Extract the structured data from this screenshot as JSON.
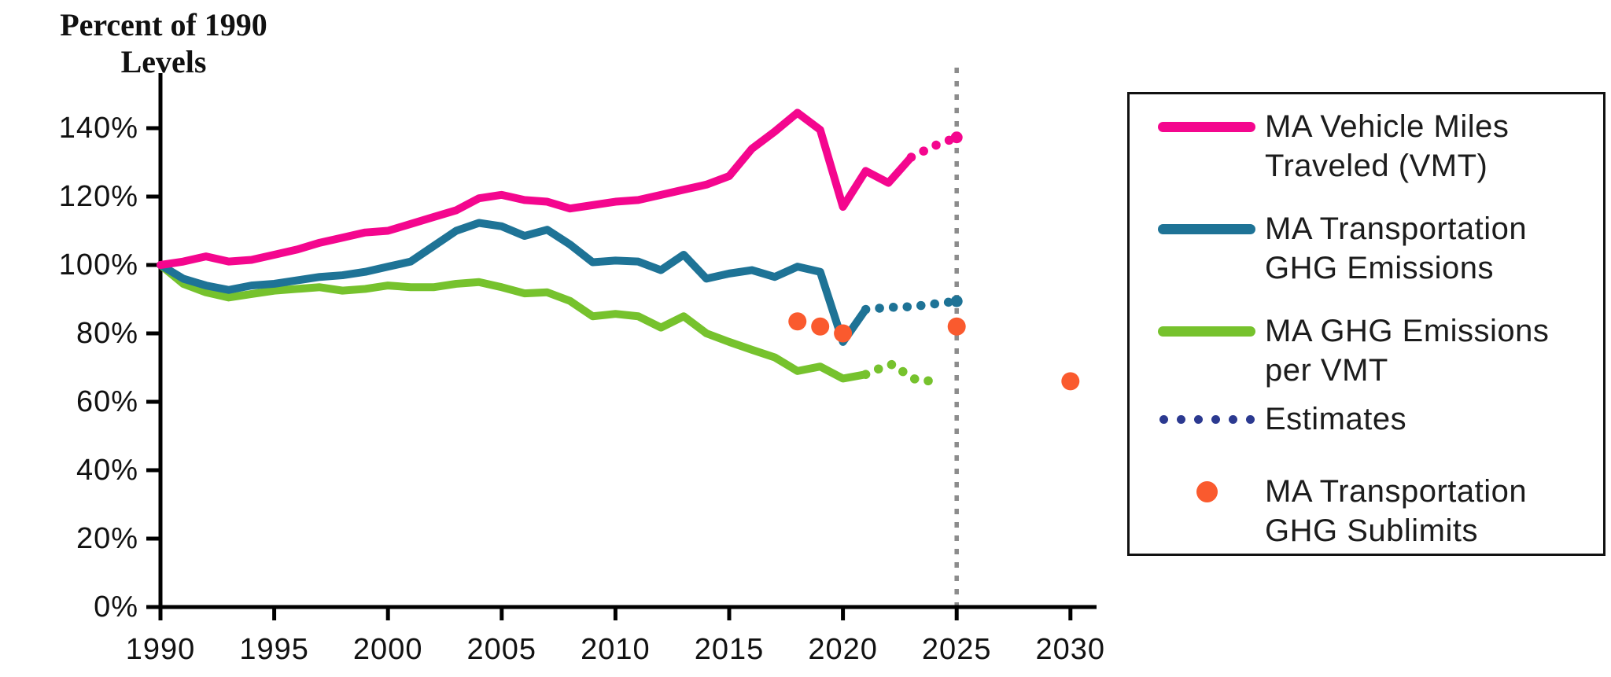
{
  "title": {
    "line1": "Percent of 1990",
    "line2": "Levels"
  },
  "colors": {
    "pink": "#F4068E",
    "blue": "#1E7396",
    "green": "#76C22D",
    "orange": "#FA5A2E",
    "navy": "#2B3990",
    "divider_gray": "#8C8C8C",
    "axis": "#000000",
    "text": "#1C1C1C"
  },
  "legend": {
    "items": [
      {
        "swatch": "line",
        "color_key": "pink",
        "lines": [
          "MA Vehicle Miles",
          "Traveled (VMT)"
        ]
      },
      {
        "swatch": "line",
        "color_key": "blue",
        "lines": [
          "MA Transportation",
          "GHG Emissions"
        ]
      },
      {
        "swatch": "line",
        "color_key": "green",
        "lines": [
          "MA GHG Emissions",
          "per VMT"
        ]
      },
      {
        "swatch": "dots",
        "color_key": "navy",
        "lines": [
          "Estimates",
          ""
        ]
      },
      {
        "swatch": "dot",
        "color_key": "orange",
        "lines": [
          "MA Transportation",
          "GHG Sublimits"
        ]
      }
    ]
  },
  "chart_data": {
    "type": "line",
    "title": "Percent of 1990 Levels",
    "xlabel": "",
    "ylabel": "Percent of 1990 Levels",
    "ylim": [
      0,
      150
    ],
    "xlim": [
      1990,
      2032
    ],
    "grid": false,
    "legend_position": "right",
    "forecast_divider_year": 2025,
    "yticks": [
      {
        "value": 0,
        "label": "0%"
      },
      {
        "value": 20,
        "label": "20%"
      },
      {
        "value": 40,
        "label": "40%"
      },
      {
        "value": 60,
        "label": "60%"
      },
      {
        "value": 80,
        "label": "80%"
      },
      {
        "value": 100,
        "label": "100%"
      },
      {
        "value": 120,
        "label": "120%"
      },
      {
        "value": 140,
        "label": "140%"
      }
    ],
    "xticks": [
      {
        "value": 1990,
        "label": "1990"
      },
      {
        "value": 1995,
        "label": "1995"
      },
      {
        "value": 2000,
        "label": "2000"
      },
      {
        "value": 2005,
        "label": "2005"
      },
      {
        "value": 2010,
        "label": "2010"
      },
      {
        "value": 2015,
        "label": "2015"
      },
      {
        "value": 2020,
        "label": "2020"
      },
      {
        "value": 2025,
        "label": "2025"
      },
      {
        "value": 2030,
        "label": "2030"
      }
    ],
    "series": [
      {
        "key": "vmt",
        "name": "MA Vehicle Miles Traveled (VMT)",
        "color_key": "pink",
        "style": "solid",
        "points": [
          [
            1990,
            100
          ],
          [
            1991,
            101
          ],
          [
            1992,
            102.5
          ],
          [
            1993,
            101
          ],
          [
            1994,
            101.5
          ],
          [
            1995,
            103
          ],
          [
            1996,
            104.5
          ],
          [
            1997,
            106.5
          ],
          [
            1998,
            108
          ],
          [
            1999,
            109.5
          ],
          [
            2000,
            110
          ],
          [
            2001,
            112
          ],
          [
            2002,
            114
          ],
          [
            2003,
            116
          ],
          [
            2004,
            119.5
          ],
          [
            2005,
            120.5
          ],
          [
            2006,
            119
          ],
          [
            2007,
            118.5
          ],
          [
            2008,
            116.5
          ],
          [
            2009,
            117.5
          ],
          [
            2010,
            118.5
          ],
          [
            2011,
            119
          ],
          [
            2012,
            120.5
          ],
          [
            2013,
            122
          ],
          [
            2014,
            123.5
          ],
          [
            2015,
            126
          ],
          [
            2016,
            134
          ],
          [
            2017,
            139
          ],
          [
            2018,
            144.5
          ],
          [
            2019,
            139.5
          ],
          [
            2020,
            117
          ],
          [
            2021,
            127.5
          ],
          [
            2022,
            124
          ],
          [
            2023,
            131.5
          ]
        ]
      },
      {
        "key": "vmt_estimate",
        "name": "Estimates (VMT)",
        "color_key": "pink",
        "style": "dotted",
        "end_dot": true,
        "points": [
          [
            2023,
            131.5
          ],
          [
            2024,
            134.8
          ],
          [
            2025,
            137.3
          ]
        ]
      },
      {
        "key": "ghg",
        "name": "MA Transportation GHG Emissions",
        "color_key": "blue",
        "style": "solid",
        "points": [
          [
            1990,
            100
          ],
          [
            1991,
            96
          ],
          [
            1992,
            94
          ],
          [
            1993,
            92.7
          ],
          [
            1994,
            94
          ],
          [
            1995,
            94.5
          ],
          [
            1996,
            95.5
          ],
          [
            1997,
            96.5
          ],
          [
            1998,
            97
          ],
          [
            1999,
            98
          ],
          [
            2000,
            99.5
          ],
          [
            2001,
            101
          ],
          [
            2002,
            105.5
          ],
          [
            2003,
            110
          ],
          [
            2004,
            112.3
          ],
          [
            2005,
            111.3
          ],
          [
            2006,
            108.5
          ],
          [
            2007,
            110.3
          ],
          [
            2008,
            106
          ],
          [
            2009,
            100.8
          ],
          [
            2010,
            101.3
          ],
          [
            2011,
            101
          ],
          [
            2012,
            98.5
          ],
          [
            2013,
            103
          ],
          [
            2014,
            96
          ],
          [
            2015,
            97.5
          ],
          [
            2016,
            98.5
          ],
          [
            2017,
            96.5
          ],
          [
            2018,
            99.5
          ],
          [
            2019,
            98
          ],
          [
            2020,
            77.5
          ],
          [
            2021,
            87
          ]
        ]
      },
      {
        "key": "ghg_estimate",
        "name": "Estimates (GHG)",
        "color_key": "blue",
        "style": "dotted",
        "end_dot": true,
        "points": [
          [
            2021,
            87
          ],
          [
            2022,
            87.6
          ],
          [
            2023,
            87.8
          ],
          [
            2024,
            88.6
          ],
          [
            2025,
            89.4
          ]
        ]
      },
      {
        "key": "per_vmt",
        "name": "MA GHG Emissions per VMT",
        "color_key": "green",
        "style": "solid",
        "points": [
          [
            1990,
            100
          ],
          [
            1991,
            94.5
          ],
          [
            1992,
            92
          ],
          [
            1993,
            90.5
          ],
          [
            1994,
            91.5
          ],
          [
            1995,
            92.5
          ],
          [
            1996,
            93
          ],
          [
            1997,
            93.5
          ],
          [
            1998,
            92.5
          ],
          [
            1999,
            93
          ],
          [
            2000,
            94
          ],
          [
            2001,
            93.5
          ],
          [
            2002,
            93.5
          ],
          [
            2003,
            94.5
          ],
          [
            2004,
            95
          ],
          [
            2005,
            93.5
          ],
          [
            2006,
            91.7
          ],
          [
            2007,
            92
          ],
          [
            2008,
            89.5
          ],
          [
            2009,
            85
          ],
          [
            2010,
            85.7
          ],
          [
            2011,
            85
          ],
          [
            2012,
            81.7
          ],
          [
            2013,
            85
          ],
          [
            2014,
            80
          ],
          [
            2015,
            77.5
          ],
          [
            2016,
            75.2
          ],
          [
            2017,
            73
          ],
          [
            2018,
            69
          ],
          [
            2019,
            70.3
          ],
          [
            2020,
            66.8
          ],
          [
            2021,
            68
          ]
        ]
      },
      {
        "key": "per_vmt_estimate",
        "name": "Estimates (per VMT)",
        "color_key": "green",
        "style": "dotted",
        "end_dot": false,
        "points": [
          [
            2021,
            68
          ],
          [
            2021.7,
            70
          ],
          [
            2022.2,
            71
          ],
          [
            2022.7,
            68.5
          ],
          [
            2023.2,
            66.5
          ],
          [
            2023.8,
            66.1
          ],
          [
            2024.3,
            65.7
          ]
        ]
      },
      {
        "key": "sublimits",
        "name": "MA Transportation GHG Sublimits",
        "color_key": "orange",
        "style": "scatter",
        "points": [
          [
            2018,
            83.5
          ],
          [
            2019,
            82
          ],
          [
            2020,
            80
          ],
          [
            2025,
            82
          ],
          [
            2030,
            66
          ]
        ]
      }
    ]
  }
}
